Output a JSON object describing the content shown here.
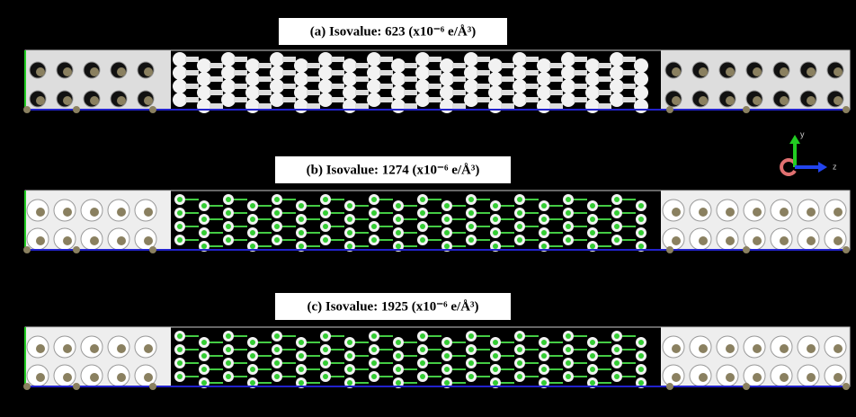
{
  "panels": [
    {
      "label": "(a) Isovalue: 623 (x10⁻⁶ e/Å³)"
    },
    {
      "label": "(b) Isovalue: 1274 (x10⁻⁶ e/Å³)"
    },
    {
      "label": "(c) Isovalue: 1925 (x10⁻⁶ e/Å³)"
    }
  ],
  "axes": {
    "y": "y",
    "z": "z"
  }
}
